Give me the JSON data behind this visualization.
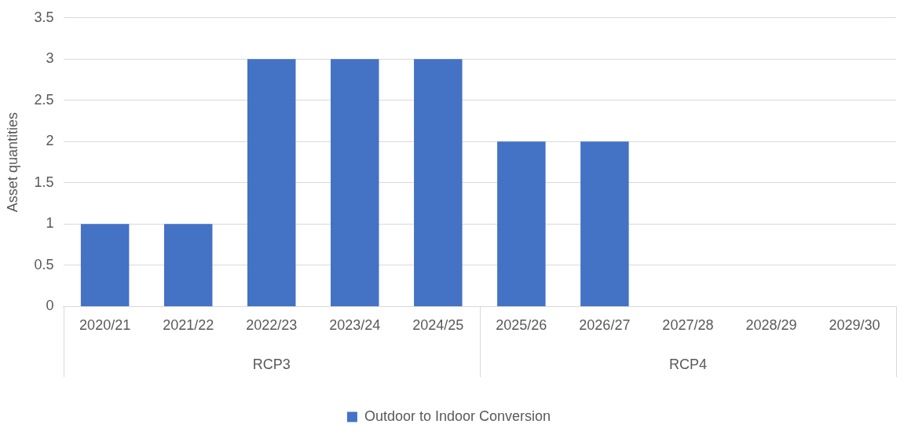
{
  "chart_data": {
    "type": "bar",
    "ylabel": "Asset quantities",
    "categories": [
      "2020/21",
      "2021/22",
      "2022/23",
      "2023/24",
      "2024/25",
      "2025/26",
      "2026/27",
      "2027/28",
      "2028/29",
      "2029/30"
    ],
    "series": [
      {
        "name": "Outdoor to Indoor Conversion",
        "color": "#4472c4",
        "values": [
          1,
          1,
          3,
          3,
          3,
          2,
          2,
          0,
          0,
          0
        ]
      }
    ],
    "ylim": [
      0,
      3.5
    ],
    "yticks": [
      0,
      0.5,
      1,
      1.5,
      2,
      2.5,
      3,
      3.5
    ],
    "grid": "y",
    "legend": "bottom",
    "annotations": [
      "RCP3",
      "RCP4"
    ]
  }
}
